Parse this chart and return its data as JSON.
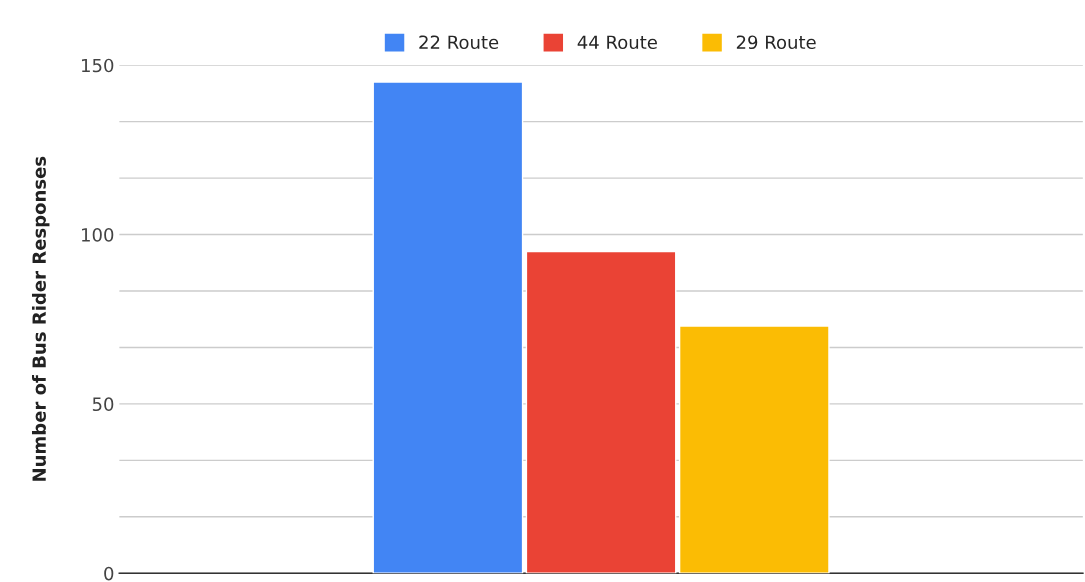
{
  "chart_data": {
    "type": "bar",
    "ylabel": "Number of Bus Rider Responses",
    "categories": [
      null
    ],
    "series": [
      {
        "name": "22 Route",
        "color": "#4285f4",
        "values": [
          145
        ]
      },
      {
        "name": "44 Route",
        "color": "#ea4335",
        "values": [
          95
        ]
      },
      {
        "name": "29 Route",
        "color": "#fbbc04",
        "values": [
          73
        ]
      }
    ],
    "ylim": [
      0,
      150
    ],
    "yticks": [
      0,
      {
        "value": 16.67,
        "label": null
      },
      {
        "value": 33.33,
        "label": null
      },
      50,
      {
        "value": 66.67,
        "label": null
      },
      {
        "value": 83.33,
        "label": null
      },
      100,
      {
        "value": 116.67,
        "label": null
      },
      {
        "value": 133.33,
        "label": null
      },
      150
    ],
    "grid": "y",
    "legend": "top",
    "tick_labels": "y"
  }
}
